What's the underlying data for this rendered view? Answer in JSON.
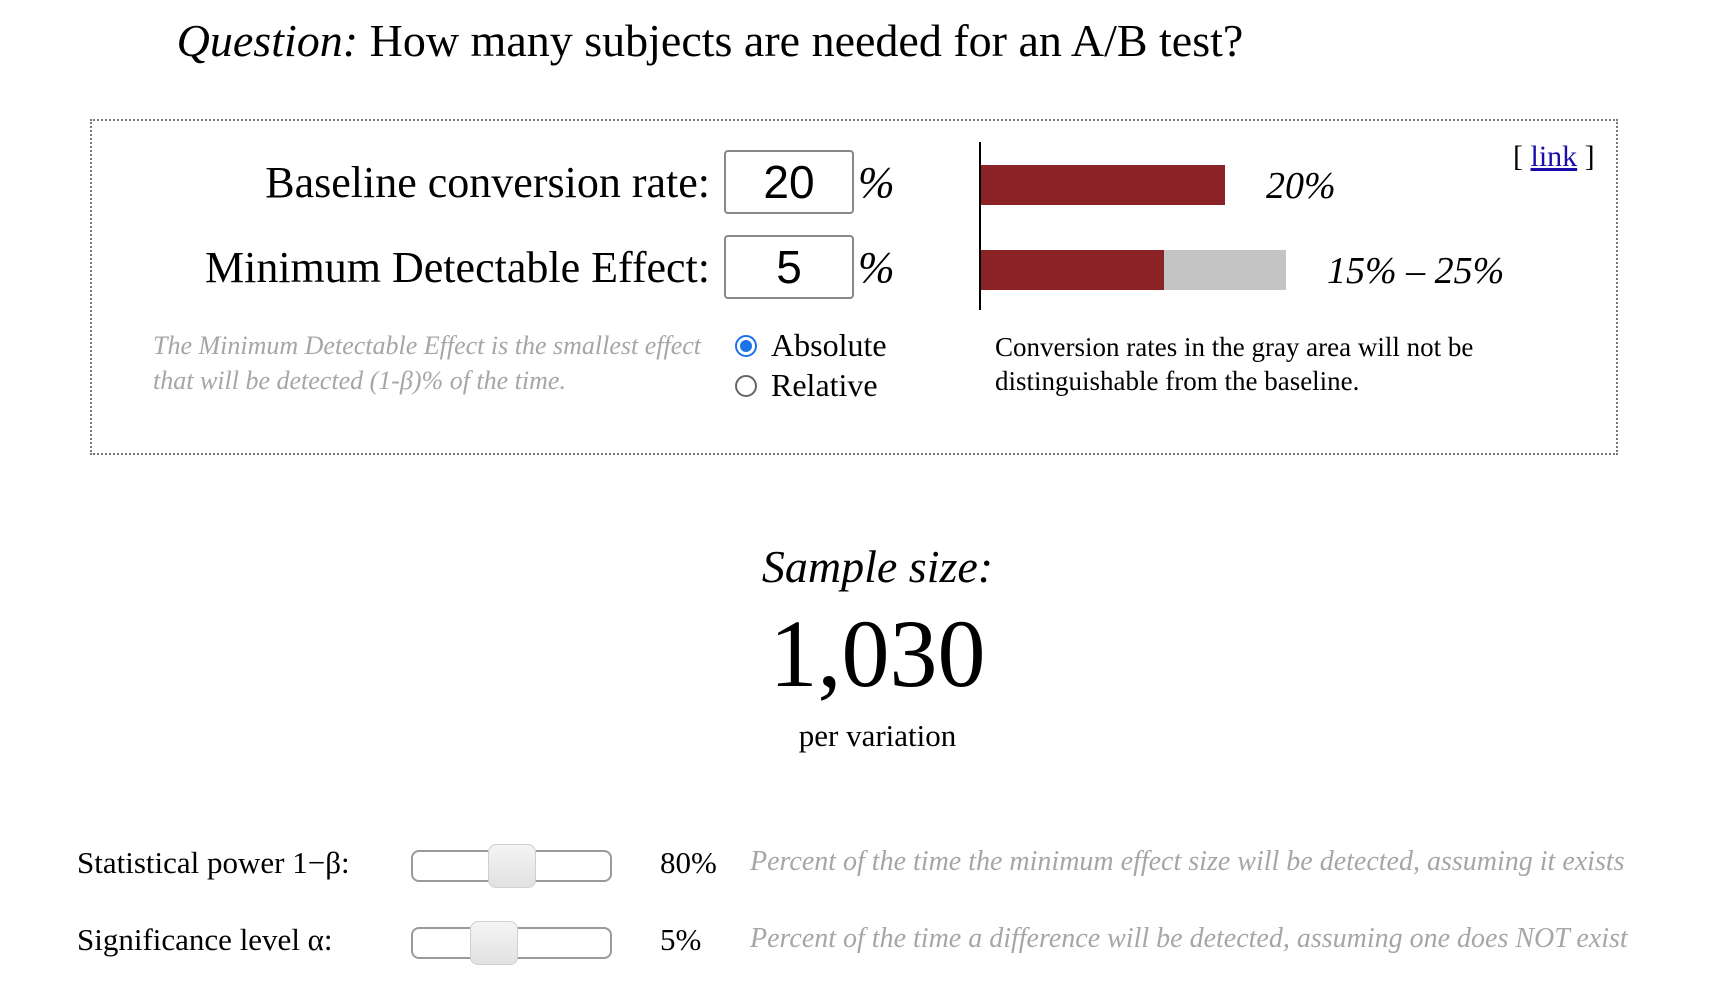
{
  "header": {
    "question_label": "Question:",
    "question_text": " How many subjects are needed for an A/B test?"
  },
  "panel": {
    "link_open": "[ ",
    "link_label": "link",
    "link_close": " ]",
    "baseline": {
      "label": "Baseline conversion rate:",
      "value": "20",
      "unit": "%"
    },
    "mde": {
      "label": "Minimum Detectable Effect:",
      "value": "5",
      "unit": "%"
    },
    "mde_note": "The Minimum Detectable Effect is the smallest effect that will be detected (1-β)% of the time.",
    "mode_options": [
      {
        "label": "Absolute",
        "selected": true
      },
      {
        "label": "Relative",
        "selected": false
      }
    ],
    "viz": {
      "baseline_pct": 20,
      "range_low_pct": 15,
      "range_high_pct": 25,
      "baseline_label": "20%",
      "range_label": "15% – 25%",
      "bar_color": "#8b2326",
      "gray_color": "#c4c4c4"
    },
    "viz_description": "Conversion rates in the gray area will not be distinguishable from the baseline."
  },
  "result": {
    "label": "Sample size:",
    "value": "1,030",
    "unit": "per variation"
  },
  "settings": {
    "power": {
      "label": "Statistical power 1−β:",
      "value": "80%",
      "level": 0.5,
      "description": "Percent of the time the minimum effect size will be detected, assuming it exists"
    },
    "significance": {
      "label": "Significance level α:",
      "value": "5%",
      "level": 0.38,
      "description": "Percent of the time a difference will be detected, assuming one does NOT exist"
    }
  }
}
